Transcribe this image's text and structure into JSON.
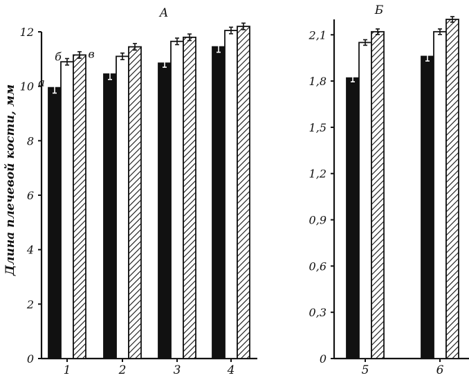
{
  "ylabel": "Длина плечевой кости, мм",
  "chart_data": [
    {
      "panel": "A",
      "title": "А",
      "type": "bar",
      "ylabel": "Длина плечевой кости, мм",
      "ylim": [
        0,
        12
      ],
      "yticks": [
        "0",
        "2",
        "4",
        "6",
        "8",
        "10",
        "12"
      ],
      "categories": [
        "1",
        "2",
        "3",
        "4"
      ],
      "series_marks": [
        "а",
        "б",
        "в"
      ],
      "series": [
        {
          "key": "a",
          "fill": "black",
          "values": [
            9.95,
            10.45,
            10.85,
            11.45
          ],
          "errors": [
            0.2,
            0.2,
            0.15,
            0.2
          ]
        },
        {
          "key": "b",
          "fill": "white",
          "values": [
            10.9,
            11.1,
            11.65,
            12.05
          ],
          "errors": [
            0.12,
            0.12,
            0.12,
            0.12
          ]
        },
        {
          "key": "c",
          "fill": "hatched",
          "values": [
            11.15,
            11.45,
            11.8,
            12.2
          ],
          "errors": [
            0.12,
            0.12,
            0.12,
            0.12
          ]
        }
      ]
    },
    {
      "panel": "B",
      "title": "Б",
      "type": "bar",
      "ylim": [
        0,
        2.2
      ],
      "yticks": [
        "0",
        "0,3",
        "0,6",
        "0,9",
        "1,2",
        "1,5",
        "1,8",
        "2,1"
      ],
      "categories": [
        "5",
        "6"
      ],
      "series": [
        {
          "key": "a",
          "fill": "black",
          "values": [
            1.82,
            1.96
          ],
          "errors": [
            0.025,
            0.03
          ]
        },
        {
          "key": "b",
          "fill": "white",
          "values": [
            2.05,
            2.12
          ],
          "errors": [
            0.018,
            0.018
          ]
        },
        {
          "key": "c",
          "fill": "hatched",
          "values": [
            2.12,
            2.2
          ],
          "errors": [
            0.018,
            0.018
          ]
        }
      ]
    }
  ]
}
